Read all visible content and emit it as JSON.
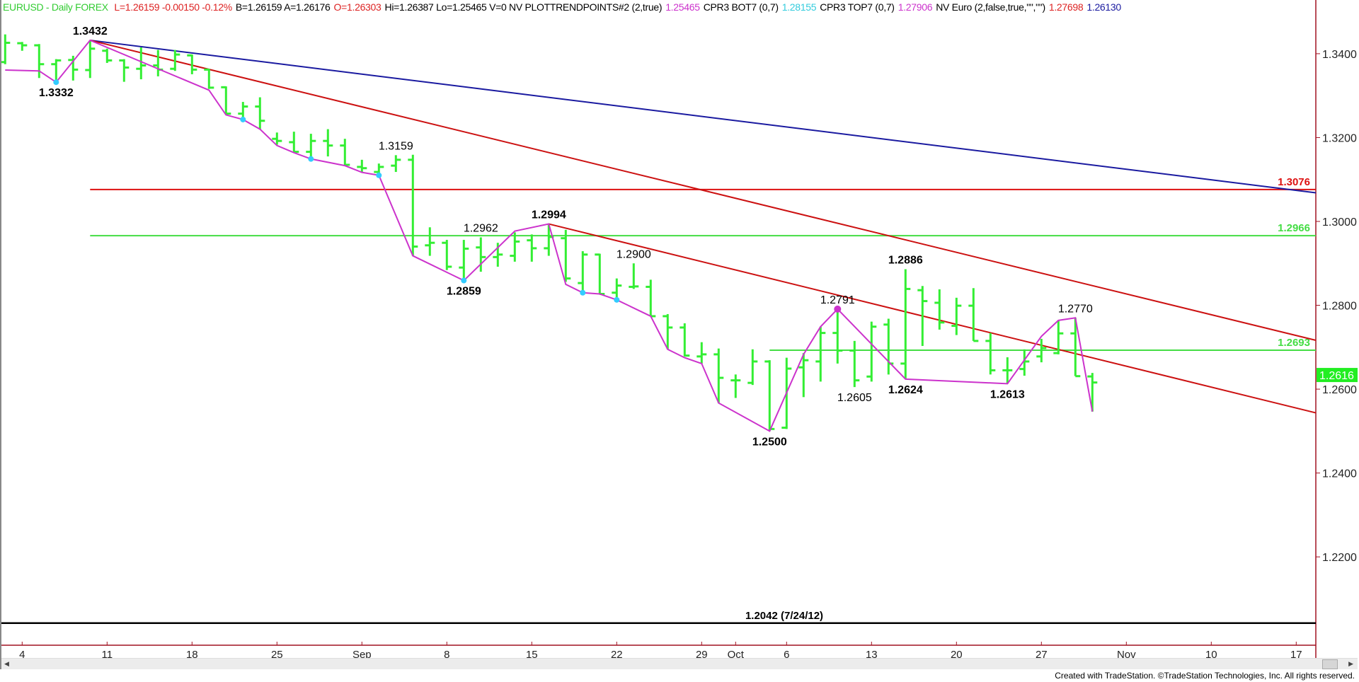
{
  "header": {
    "symbol": {
      "text": "EURUSD - Daily  FOREX",
      "color": "#33cc33"
    },
    "items": [
      {
        "text": "L=1.26159  -0.00150  -0.12%",
        "color": "#dd2222"
      },
      {
        "text": "B=1.26159  A=1.26176",
        "color": "#000000"
      },
      {
        "text": "O=1.26303",
        "color": "#dd2222"
      },
      {
        "text": "Hi=1.26387  Lo=1.25465  V=0  NV  PLOTTRENDPOINTS#2 (2,true)",
        "color": "#000000"
      },
      {
        "text": "1.25465",
        "color": "#cc33cc"
      },
      {
        "text": "CPR3 BOT7 (0,7)",
        "color": "#000000"
      },
      {
        "text": "1.28155",
        "color": "#33ccdd"
      },
      {
        "text": "CPR3 TOP7 (0,7)",
        "color": "#000000"
      },
      {
        "text": "1.27906",
        "color": "#cc33cc"
      },
      {
        "text": "NV Euro (2,false,true,\"\",\"\")",
        "color": "#000000"
      },
      {
        "text": "1.27698",
        "color": "#dd2222"
      },
      {
        "text": "1.26130",
        "color": "#1a1aa0"
      }
    ]
  },
  "chart_data": {
    "type": "bar",
    "style": "ohlc",
    "bar_color": "#33ee33",
    "y_ticks": [
      "1.3400",
      "1.3200",
      "1.3000",
      "1.2800",
      "1.2600",
      "1.2400",
      "1.2200"
    ],
    "ylim": [
      1.199,
      1.352
    ],
    "x_ticks": [
      {
        "label": "4",
        "date": "Aug 4"
      },
      {
        "label": "11",
        "date": "Aug 11"
      },
      {
        "label": "18",
        "date": "Aug 18"
      },
      {
        "label": "25",
        "date": "Aug 25"
      },
      {
        "label": "Sep",
        "date": "Sep 1"
      },
      {
        "label": "8",
        "date": "Sep 8"
      },
      {
        "label": "15",
        "date": "Sep 15"
      },
      {
        "label": "22",
        "date": "Sep 22"
      },
      {
        "label": "29",
        "date": "Sep 29"
      },
      {
        "label": "Oct",
        "date": "Oct 1"
      },
      {
        "label": "6",
        "date": "Oct 6"
      },
      {
        "label": "13",
        "date": "Oct 13"
      },
      {
        "label": "20",
        "date": "Oct 20"
      },
      {
        "label": "27",
        "date": "Oct 27"
      },
      {
        "label": "Nov",
        "date": "Nov 3"
      },
      {
        "label": "10",
        "date": "Nov 10"
      },
      {
        "label": "17",
        "date": "Nov 17"
      }
    ],
    "dates": [
      "Aug 1",
      "Aug 4",
      "Aug 5",
      "Aug 6",
      "Aug 7",
      "Aug 8",
      "Aug 11",
      "Aug 12",
      "Aug 13",
      "Aug 14",
      "Aug 15",
      "Aug 18",
      "Aug 19",
      "Aug 20",
      "Aug 21",
      "Aug 22",
      "Aug 25",
      "Aug 26",
      "Aug 27",
      "Aug 28",
      "Aug 29",
      "Sep 1",
      "Sep 2",
      "Sep 3",
      "Sep 4",
      "Sep 5",
      "Sep 8",
      "Sep 9",
      "Sep 10",
      "Sep 11",
      "Sep 12",
      "Sep 15",
      "Sep 16",
      "Sep 17",
      "Sep 18",
      "Sep 19",
      "Sep 22",
      "Sep 23",
      "Sep 24",
      "Sep 25",
      "Sep 26",
      "Sep 29",
      "Sep 30",
      "Oct 1",
      "Oct 2",
      "Oct 3",
      "Oct 6",
      "Oct 7",
      "Oct 8",
      "Oct 9",
      "Oct 10",
      "Oct 13",
      "Oct 14",
      "Oct 15",
      "Oct 16",
      "Oct 17",
      "Oct 20",
      "Oct 21",
      "Oct 22",
      "Oct 23",
      "Oct 24",
      "Oct 27",
      "Oct 28",
      "Oct 29",
      "Oct 30"
    ],
    "ohlc": [
      [
        1.338,
        1.3446,
        1.3375,
        1.3426
      ],
      [
        1.3425,
        1.3428,
        1.3407,
        1.342
      ],
      [
        1.342,
        1.3423,
        1.3342,
        1.3375
      ],
      [
        1.3375,
        1.3387,
        1.3332,
        1.3384
      ],
      [
        1.3385,
        1.3395,
        1.3336,
        1.3362
      ],
      [
        1.3361,
        1.3432,
        1.3342,
        1.3412
      ],
      [
        1.3407,
        1.3412,
        1.3378,
        1.3384
      ],
      [
        1.3384,
        1.3387,
        1.3333,
        1.3367
      ],
      [
        1.3364,
        1.3415,
        1.3339,
        1.3372
      ],
      [
        1.3372,
        1.3409,
        1.3346,
        1.3362
      ],
      [
        1.3364,
        1.3409,
        1.3359,
        1.3398
      ],
      [
        1.3396,
        1.3398,
        1.3351,
        1.3362
      ],
      [
        1.3362,
        1.3364,
        1.3316,
        1.3319
      ],
      [
        1.332,
        1.3322,
        1.3257,
        1.3257
      ],
      [
        1.3257,
        1.3285,
        1.3243,
        1.3274
      ],
      [
        1.3274,
        1.3296,
        1.322,
        1.324
      ],
      [
        1.3197,
        1.3212,
        1.3183,
        1.3192
      ],
      [
        1.3189,
        1.3214,
        1.3164,
        1.3166
      ],
      [
        1.3166,
        1.3209,
        1.3149,
        1.3192
      ],
      [
        1.3192,
        1.322,
        1.3155,
        1.3181
      ],
      [
        1.3181,
        1.3197,
        1.3133,
        1.3135
      ],
      [
        1.313,
        1.3147,
        1.3118,
        1.3127
      ],
      [
        1.3118,
        1.3138,
        1.311,
        1.313
      ],
      [
        1.3133,
        1.3158,
        1.3118,
        1.3147
      ],
      [
        1.3147,
        1.3159,
        1.2918,
        1.294
      ],
      [
        1.2943,
        1.2986,
        1.2918,
        1.2949
      ],
      [
        1.2949,
        1.2956,
        1.2884,
        1.2892
      ],
      [
        1.289,
        1.2956,
        1.2859,
        1.2935
      ],
      [
        1.2938,
        1.2962,
        1.288,
        1.2915
      ],
      [
        1.2915,
        1.2949,
        1.2892,
        1.2921
      ],
      [
        1.2918,
        1.2974,
        1.2904,
        1.2952
      ],
      [
        1.2955,
        1.2969,
        1.2904,
        1.2936
      ],
      [
        1.2936,
        1.2994,
        1.2918,
        1.2963
      ],
      [
        1.296,
        1.298,
        1.2856,
        1.2864
      ],
      [
        1.2853,
        1.2929,
        1.283,
        1.2921
      ],
      [
        1.2921,
        1.2923,
        1.2827,
        1.2827
      ],
      [
        1.283,
        1.2864,
        1.2813,
        1.2847
      ],
      [
        1.2844,
        1.29,
        1.2839,
        1.2845
      ],
      [
        1.2844,
        1.2861,
        1.2774,
        1.2774
      ],
      [
        1.2774,
        1.2779,
        1.2695,
        1.2747
      ],
      [
        1.2747,
        1.2757,
        1.2678,
        1.268
      ],
      [
        1.2678,
        1.2712,
        1.2661,
        1.2683
      ],
      [
        1.2683,
        1.2697,
        1.2567,
        1.2627
      ],
      [
        1.2621,
        1.2635,
        1.2579,
        1.2621
      ],
      [
        1.2615,
        1.2695,
        1.261,
        1.2666
      ],
      [
        1.2666,
        1.2669,
        1.25,
        1.2505
      ],
      [
        1.2508,
        1.2675,
        1.2505,
        1.2649
      ],
      [
        1.2652,
        1.2686,
        1.2581,
        1.2669
      ],
      [
        1.2666,
        1.2749,
        1.2618,
        1.2734
      ],
      [
        1.2734,
        1.2791,
        1.2661,
        1.2692
      ],
      [
        1.2692,
        1.2715,
        1.2605,
        1.2621
      ],
      [
        1.263,
        1.2761,
        1.2618,
        1.2749
      ],
      [
        1.2754,
        1.2768,
        1.2635,
        1.2661
      ],
      [
        1.2661,
        1.2886,
        1.2624,
        1.2839
      ],
      [
        1.2836,
        1.2846,
        1.2703,
        1.281
      ],
      [
        1.2806,
        1.2838,
        1.2742,
        1.2759
      ],
      [
        1.2751,
        1.2818,
        1.2729,
        1.2799
      ],
      [
        1.2799,
        1.2841,
        1.2715,
        1.2715
      ],
      [
        1.2715,
        1.2734,
        1.2635,
        1.2645
      ],
      [
        1.2645,
        1.2676,
        1.2613,
        1.2645
      ],
      [
        1.2648,
        1.2695,
        1.2632,
        1.2666
      ],
      [
        1.2678,
        1.272,
        1.2664,
        1.2698
      ],
      [
        1.2686,
        1.2764,
        1.2683,
        1.2733
      ],
      [
        1.2733,
        1.277,
        1.2631,
        1.2631
      ],
      [
        1.26303,
        1.26387,
        1.25465,
        1.26159
      ]
    ],
    "trend_points": {
      "color": "#cc33cc",
      "points": [
        [
          "Aug 1",
          1.3361
        ],
        [
          "Aug 5",
          1.3359
        ],
        [
          "Aug 6",
          1.3332
        ],
        [
          "Aug 8",
          1.3432
        ],
        [
          "Aug 19",
          1.3313
        ],
        [
          "Aug 20",
          1.3254
        ],
        [
          "Aug 21",
          1.3243
        ],
        [
          "Aug 22",
          1.322
        ],
        [
          "Aug 25",
          1.3181
        ],
        [
          "Aug 26",
          1.3164
        ],
        [
          "Aug 27",
          1.3149
        ],
        [
          "Aug 29",
          1.3133
        ],
        [
          "Sep 1",
          1.3117
        ],
        [
          "Sep 2",
          1.311
        ],
        [
          "Sep 4",
          1.2918
        ],
        [
          "Sep 9",
          1.2859
        ],
        [
          "Sep 12",
          1.2977
        ],
        [
          "Sep 16",
          1.2994
        ],
        [
          "Sep 17",
          1.285
        ],
        [
          "Sep 18",
          1.283
        ],
        [
          "Sep 19",
          1.2827
        ],
        [
          "Sep 22",
          1.2813
        ],
        [
          "Sep 24",
          1.2774
        ],
        [
          "Sep 25",
          1.2695
        ],
        [
          "Sep 26",
          1.2675
        ],
        [
          "Sep 29",
          1.2661
        ],
        [
          "Sep 30",
          1.2567
        ],
        [
          "Oct 3",
          1.25
        ],
        [
          "Oct 7",
          1.2683
        ],
        [
          "Oct 8",
          1.2749
        ],
        [
          "Oct 9",
          1.2791
        ],
        [
          "Oct 15",
          1.2624
        ],
        [
          "Oct 23",
          1.2613
        ],
        [
          "Oct 27",
          1.2726
        ],
        [
          "Oct 28",
          1.2764
        ],
        [
          "Oct 29",
          1.277
        ],
        [
          "Oct 30",
          1.25465
        ]
      ],
      "cyan_dots": [
        [
          "Aug 6",
          1.3332
        ],
        [
          "Aug 21",
          1.3243
        ],
        [
          "Aug 27",
          1.3149
        ],
        [
          "Sep 2",
          1.311
        ],
        [
          "Sep 9",
          1.2859
        ],
        [
          "Sep 18",
          1.283
        ],
        [
          "Sep 22",
          1.2813
        ]
      ],
      "cyan_color": "#33ccff",
      "magenta_dots": [
        [
          "Oct 9",
          1.2791
        ]
      ]
    },
    "trend_lines": [
      {
        "color": "#1a1aa0",
        "from": [
          "Aug 8",
          1.3432
        ],
        "to": [
          "Nov 18",
          1.3069
        ]
      },
      {
        "color": "#cc1111",
        "from": [
          "Aug 8",
          1.3432
        ],
        "to": [
          "Nov 18",
          1.2718
        ]
      },
      {
        "color": "#cc1111",
        "from": [
          "Sep 16",
          1.2994
        ],
        "to": [
          "Nov 18",
          1.2545
        ]
      }
    ],
    "levels": [
      {
        "price": 1.3076,
        "label": "1.3076",
        "color": "#dd1111",
        "from": "Aug 8"
      },
      {
        "price": 1.2966,
        "label": "1.2966",
        "color": "#44dd44",
        "from": "Aug 8"
      },
      {
        "price": 1.2693,
        "label": "1.2693",
        "color": "#44dd44",
        "from": "Oct 3"
      },
      {
        "price": 1.2042,
        "label": "1.2042 (7/24/12)",
        "color": "#000000",
        "from": "start",
        "center_label": true
      }
    ],
    "swing_labels": [
      {
        "text": "1.3432",
        "date": "Aug 8",
        "pos": "above",
        "bold": true
      },
      {
        "text": "1.3332",
        "date": "Aug 6",
        "pos": "below",
        "bold": true
      },
      {
        "text": "1.3159",
        "date": "Sep 3",
        "pos": "above",
        "bold": false
      },
      {
        "text": "1.2962",
        "date": "Sep 10",
        "pos": "above",
        "bold": false
      },
      {
        "text": "1.2859",
        "date": "Sep 9",
        "pos": "below",
        "bold": true
      },
      {
        "text": "1.2994",
        "date": "Sep 16",
        "pos": "above",
        "bold": true
      },
      {
        "text": "1.2900",
        "date": "Sep 23",
        "pos": "above",
        "bold": false
      },
      {
        "text": "1.2500",
        "date": "Oct 3",
        "pos": "below",
        "bold": true
      },
      {
        "text": "1.2791",
        "date": "Oct 9",
        "pos": "above",
        "bold": false
      },
      {
        "text": "1.2605",
        "date": "Oct 10",
        "pos": "below",
        "bold": false
      },
      {
        "text": "1.2886",
        "date": "Oct 15",
        "pos": "above",
        "bold": true
      },
      {
        "text": "1.2624",
        "date": "Oct 15",
        "pos": "below",
        "bold": true
      },
      {
        "text": "1.2613",
        "date": "Oct 23",
        "pos": "below",
        "bold": true
      },
      {
        "text": "1.2770",
        "date": "Oct 29",
        "pos": "above",
        "bold": false
      }
    ],
    "last_price": {
      "value": 1.2616,
      "label": "1.2616",
      "color": "#22ee22"
    }
  },
  "footer": {
    "text": "Created with TradeStation. ©TradeStation Technologies, Inc. All rights reserved."
  }
}
